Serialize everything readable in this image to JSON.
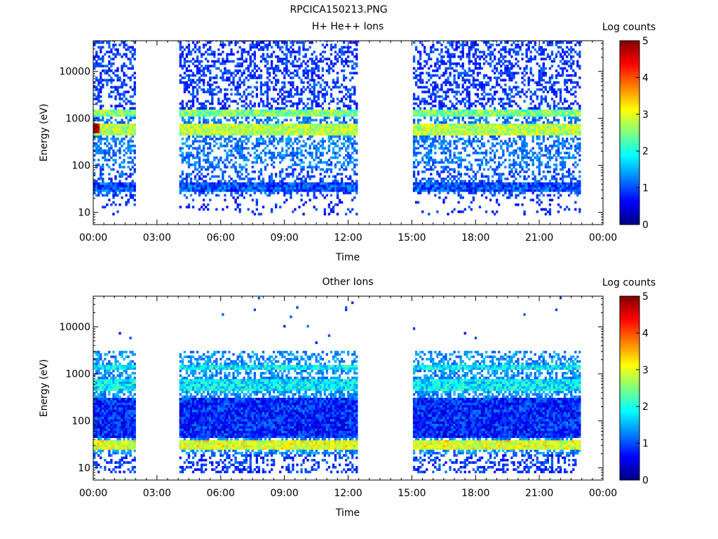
{
  "figure": {
    "title": "RPCICA150213.PNG"
  },
  "colorscale": {
    "label": "Log counts",
    "min": 0,
    "max": 5,
    "ticks": [
      "0",
      "1",
      "2",
      "3",
      "4",
      "5"
    ],
    "stops": [
      "#000080",
      "#0000ff",
      "#0080ff",
      "#00ffff",
      "#80ff80",
      "#ffff00",
      "#ff8000",
      "#ff0000",
      "#800000"
    ]
  },
  "chart_data": [
    {
      "type": "heatmap",
      "title": "H+ He++ Ions",
      "xlabel": "Time",
      "ylabel": "Energy (eV)",
      "xlim": [
        "00:00",
        "24:00"
      ],
      "x_ticks": [
        "00:00",
        "03:00",
        "06:00",
        "09:00",
        "12:00",
        "15:00",
        "18:00",
        "21:00",
        "00:00"
      ],
      "y_scale": "log",
      "ylim": [
        5.5,
        45000
      ],
      "y_ticks": [
        10,
        100,
        1000,
        10000
      ],
      "y_tick_labels": [
        "10",
        "100",
        "1000",
        "10000"
      ],
      "colorbar": "Log counts",
      "data_coverage_hours": [
        [
          0.0,
          1.95
        ],
        [
          4.05,
          12.4
        ],
        [
          15.05,
          22.9
        ]
      ],
      "bands": [
        {
          "energy_range_eV": [
            1050,
            1450
          ],
          "log_counts": 2.5
        },
        {
          "energy_range_eV": [
            400,
            750
          ],
          "log_counts": 2.8
        },
        {
          "energy_range_eV": [
            450,
            700
          ],
          "log_counts": 4.8,
          "hours": [
            0.0,
            0.3
          ]
        },
        {
          "energy_range_eV": [
            25,
            40
          ],
          "log_counts": 1.0
        }
      ]
    },
    {
      "type": "heatmap",
      "title": "Other Ions",
      "xlabel": "Time",
      "ylabel": "Energy (eV)",
      "xlim": [
        "00:00",
        "24:00"
      ],
      "x_ticks": [
        "00:00",
        "03:00",
        "06:00",
        "09:00",
        "12:00",
        "15:00",
        "18:00",
        "21:00",
        "00:00"
      ],
      "y_scale": "log",
      "ylim": [
        5.5,
        45000
      ],
      "y_ticks": [
        10,
        100,
        1000,
        10000
      ],
      "y_tick_labels": [
        "10",
        "100",
        "1000",
        "10000"
      ],
      "colorbar": "Log counts",
      "data_coverage_hours": [
        [
          0.0,
          1.95
        ],
        [
          4.05,
          12.4
        ],
        [
          15.05,
          22.9
        ]
      ],
      "bands": [
        {
          "energy_range_eV": [
            1100,
            1450
          ],
          "log_counts": 1.8
        },
        {
          "energy_range_eV": [
            420,
            720
          ],
          "log_counts": 1.8
        },
        {
          "energy_range_eV": [
            23,
            38
          ],
          "log_counts": 3.0
        },
        {
          "energy_range_eV": [
            40,
            300
          ],
          "log_counts": 0.8
        }
      ]
    }
  ]
}
